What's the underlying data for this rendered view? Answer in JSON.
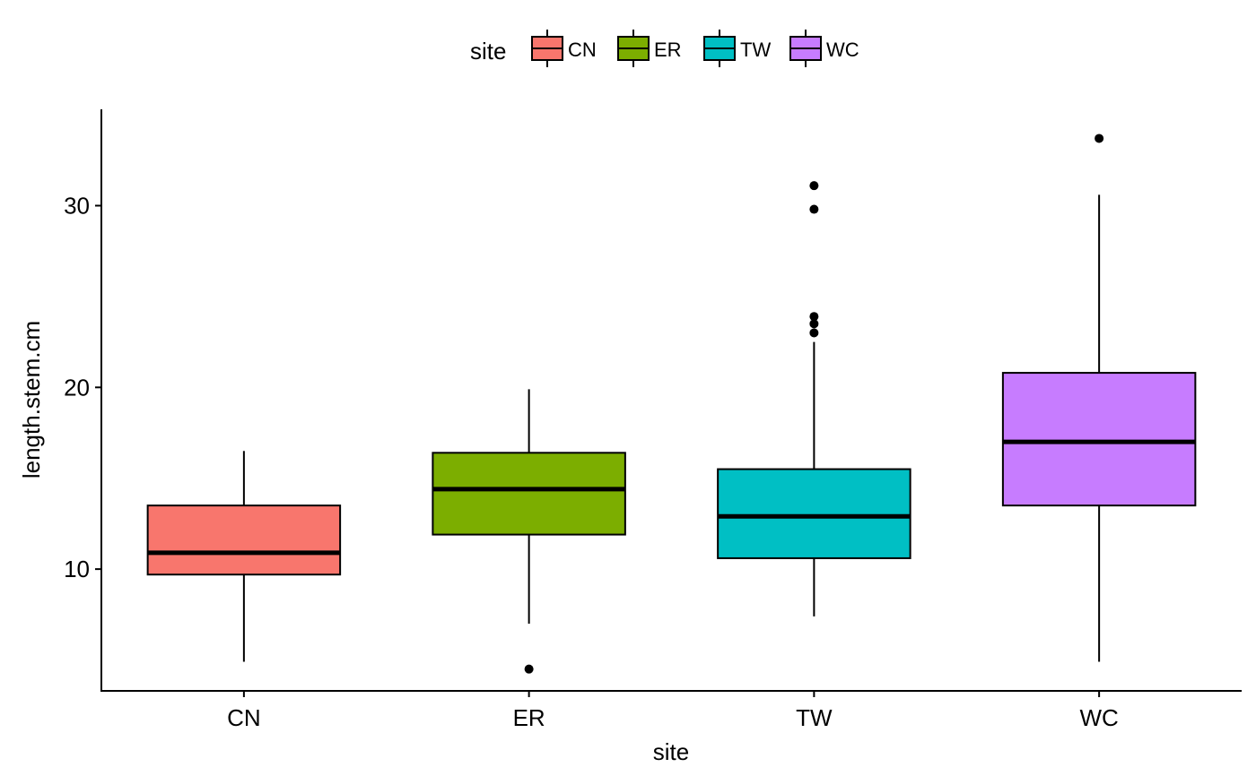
{
  "chart_data": {
    "type": "box",
    "xlabel": "site",
    "ylabel": "length.stem.cm",
    "ylim": [
      3.3,
      35.3
    ],
    "yticks": [
      10,
      20,
      30
    ],
    "grid": false,
    "legend": {
      "title": "site",
      "position": "top",
      "entries": [
        {
          "label": "CN",
          "color": "#F8766D"
        },
        {
          "label": "ER",
          "color": "#7CAE00"
        },
        {
          "label": "TW",
          "color": "#00BFC4"
        },
        {
          "label": "WC",
          "color": "#C77CFF"
        }
      ]
    },
    "categories": [
      "CN",
      "ER",
      "TW",
      "WC"
    ],
    "boxes": [
      {
        "category": "CN",
        "color": "#F8766D",
        "whisker_low": 4.9,
        "q1": 9.7,
        "median": 10.9,
        "q3": 13.5,
        "whisker_high": 16.5,
        "outliers": []
      },
      {
        "category": "ER",
        "color": "#7CAE00",
        "whisker_low": 7.0,
        "q1": 11.9,
        "median": 14.4,
        "q3": 16.4,
        "whisker_high": 19.9,
        "outliers": [
          4.5
        ]
      },
      {
        "category": "TW",
        "color": "#00BFC4",
        "whisker_low": 7.4,
        "q1": 10.6,
        "median": 12.9,
        "q3": 15.5,
        "whisker_high": 22.5,
        "outliers": [
          23.0,
          23.5,
          23.9,
          29.8,
          31.1
        ]
      },
      {
        "category": "WC",
        "color": "#C77CFF",
        "whisker_low": 4.9,
        "q1": 13.5,
        "median": 17.0,
        "q3": 20.8,
        "whisker_high": 30.6,
        "outliers": [
          33.7
        ]
      }
    ]
  }
}
